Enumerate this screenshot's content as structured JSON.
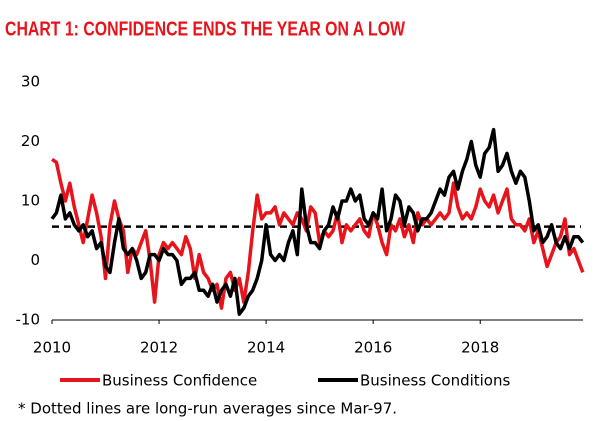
{
  "chart_data": {
    "type": "line",
    "title": "CHART 1: CONFIDENCE ENDS THE YEAR ON A LOW",
    "note": "* Dotted lines are long-run averages since Mar-97.",
    "x": [
      2010,
      2010.083,
      2010.167,
      2010.25,
      2010.333,
      2010.417,
      2010.5,
      2010.583,
      2010.667,
      2010.75,
      2010.833,
      2010.917,
      2011,
      2011.083,
      2011.167,
      2011.25,
      2011.333,
      2011.417,
      2011.5,
      2011.583,
      2011.667,
      2011.75,
      2011.833,
      2011.917,
      2012,
      2012.083,
      2012.167,
      2012.25,
      2012.333,
      2012.417,
      2012.5,
      2012.583,
      2012.667,
      2012.75,
      2012.833,
      2012.917,
      2013,
      2013.083,
      2013.167,
      2013.25,
      2013.333,
      2013.417,
      2013.5,
      2013.583,
      2013.667,
      2013.75,
      2013.833,
      2013.917,
      2014,
      2014.083,
      2014.167,
      2014.25,
      2014.333,
      2014.417,
      2014.5,
      2014.583,
      2014.667,
      2014.75,
      2014.833,
      2014.917,
      2015,
      2015.083,
      2015.167,
      2015.25,
      2015.333,
      2015.417,
      2015.5,
      2015.583,
      2015.667,
      2015.75,
      2015.833,
      2015.917,
      2016,
      2016.083,
      2016.167,
      2016.25,
      2016.333,
      2016.417,
      2016.5,
      2016.583,
      2016.667,
      2016.75,
      2016.833,
      2016.917,
      2017,
      2017.083,
      2017.167,
      2017.25,
      2017.333,
      2017.417,
      2017.5,
      2017.583,
      2017.667,
      2017.75,
      2017.833,
      2017.917,
      2018,
      2018.083,
      2018.167,
      2018.25,
      2018.333,
      2018.417,
      2018.5,
      2018.583,
      2018.667,
      2018.75,
      2018.833,
      2018.917,
      2019,
      2019.083,
      2019.167,
      2019.25,
      2019.333,
      2019.417,
      2019.5,
      2019.583,
      2019.667,
      2019.75,
      2019.833,
      2019.917
    ],
    "series": [
      {
        "name": "Business Confidence",
        "color": "#e8141c",
        "values": [
          17,
          16.5,
          13,
          10,
          13,
          9,
          6,
          3,
          7,
          11,
          8,
          4,
          -3,
          6,
          10,
          7,
          5,
          -2,
          2,
          1,
          3,
          5,
          0,
          -7,
          1,
          3,
          2,
          3,
          2,
          1,
          4,
          2,
          -3,
          1,
          -2,
          -3,
          -5,
          -4,
          -8,
          -3,
          -2,
          -5,
          -3,
          -7,
          -2,
          5,
          11,
          7,
          8,
          8,
          9,
          6,
          8,
          7,
          6,
          8,
          7,
          5,
          9,
          8,
          3,
          5,
          4,
          5,
          8,
          3,
          6,
          5,
          6,
          7,
          5,
          4,
          8,
          6,
          3,
          1,
          6,
          5,
          7,
          4,
          6,
          3,
          8,
          6,
          7,
          6,
          7,
          8,
          7,
          8,
          13,
          9,
          7,
          8,
          7,
          9,
          12,
          10,
          9,
          11,
          8,
          10,
          12,
          7,
          6,
          6,
          5,
          7,
          3,
          5,
          2,
          -1,
          1,
          3,
          4,
          7,
          1,
          2,
          0,
          -2
        ]
      },
      {
        "name": "Business Conditions",
        "color": "#000000",
        "values": [
          7,
          8,
          11,
          7,
          8,
          6,
          5,
          6,
          4,
          5,
          2,
          3,
          -1,
          -2,
          3,
          7,
          2,
          1,
          2,
          0,
          -3,
          -2,
          1,
          1,
          0,
          2,
          1,
          1,
          0,
          -4,
          -3,
          -3,
          -2,
          -5,
          -5,
          -6,
          -4,
          -7,
          -5,
          -4,
          -6,
          -3,
          -9,
          -8,
          -6,
          -5,
          -3,
          0,
          6,
          1,
          0,
          1,
          0,
          3,
          5,
          1,
          12,
          6,
          3,
          3,
          2,
          5,
          6,
          9,
          7,
          10,
          10,
          12,
          10,
          11,
          7,
          6,
          8,
          7,
          12,
          5,
          7,
          11,
          10,
          6,
          9,
          8,
          5,
          7,
          7,
          8,
          10,
          12,
          11,
          14,
          15,
          12,
          15,
          17,
          20,
          16,
          14,
          18,
          19,
          22,
          15,
          16,
          18,
          15,
          13,
          15,
          14,
          10,
          5,
          6,
          3,
          4,
          6,
          3,
          2,
          4,
          2,
          4,
          4,
          3
        ]
      }
    ],
    "reference_lines": [
      {
        "value": 5.7,
        "color": "#000000",
        "dash": true
      }
    ],
    "xlim": [
      2010,
      2019.92
    ],
    "xticks": [
      2010,
      2012,
      2014,
      2016,
      2018
    ],
    "ylim": [
      -10,
      30
    ],
    "yticks": [
      -10,
      0,
      10,
      20,
      30
    ]
  }
}
